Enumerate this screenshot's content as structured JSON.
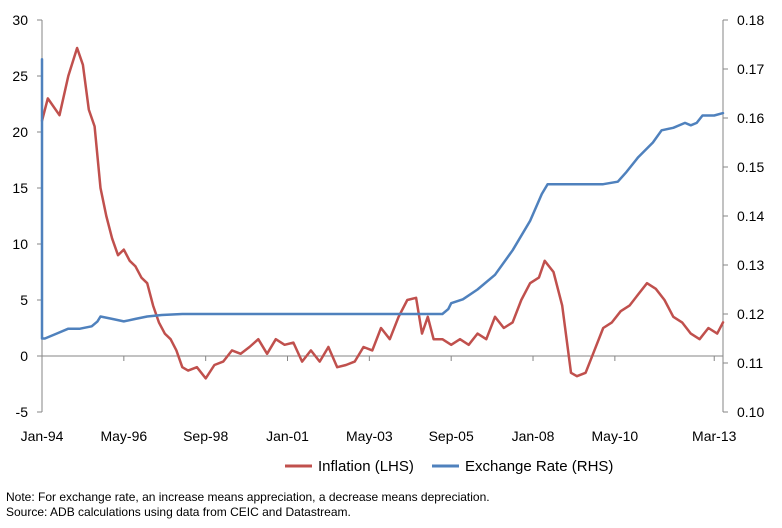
{
  "chart_data": {
    "type": "line",
    "dual_axis": true,
    "x_tick_labels": [
      "Jan-94",
      "May-96",
      "Sep-98",
      "Jan-01",
      "May-03",
      "Sep-05",
      "Jan-08",
      "May-10",
      "Mar-13"
    ],
    "x_tick_dates": [
      "1994-01",
      "1996-05",
      "1998-09",
      "2001-01",
      "2003-05",
      "2005-09",
      "2008-01",
      "2010-05",
      "2013-03"
    ],
    "xlim": [
      "1994-01",
      "2013-06"
    ],
    "y_left": {
      "ylim": [
        -5,
        30
      ],
      "ticks": [
        "-5",
        "0",
        "5",
        "10",
        "15",
        "20",
        "25",
        "30"
      ]
    },
    "y_right": {
      "ylim": [
        0.1,
        0.18
      ],
      "ticks": [
        "0.10",
        "0.11",
        "0.12",
        "0.13",
        "0.14",
        "0.15",
        "0.16",
        "0.17",
        "0.18"
      ]
    },
    "grid": false,
    "legend_position": "bottom",
    "series": [
      {
        "name": "Inflation (LHS)",
        "axis": "left",
        "color": "#c0504d",
        "x": [
          "1994-01",
          "1994-03",
          "1994-07",
          "1994-10",
          "1995-01",
          "1995-03",
          "1995-05",
          "1995-07",
          "1995-09",
          "1995-11",
          "1996-01",
          "1996-03",
          "1996-05",
          "1996-07",
          "1996-09",
          "1996-11",
          "1997-01",
          "1997-03",
          "1997-05",
          "1997-07",
          "1997-09",
          "1997-11",
          "1998-01",
          "1998-03",
          "1998-06",
          "1998-09",
          "1998-12",
          "1999-03",
          "1999-06",
          "1999-09",
          "1999-12",
          "2000-03",
          "2000-06",
          "2000-09",
          "2000-12",
          "2001-03",
          "2001-06",
          "2001-09",
          "2001-12",
          "2002-03",
          "2002-06",
          "2002-09",
          "2002-12",
          "2003-03",
          "2003-06",
          "2003-09",
          "2003-12",
          "2004-03",
          "2004-06",
          "2004-09",
          "2004-11",
          "2005-01",
          "2005-03",
          "2005-06",
          "2005-09",
          "2005-12",
          "2006-03",
          "2006-06",
          "2006-09",
          "2006-12",
          "2007-03",
          "2007-06",
          "2007-09",
          "2007-12",
          "2008-03",
          "2008-05",
          "2008-08",
          "2008-11",
          "2009-02",
          "2009-04",
          "2009-07",
          "2009-10",
          "2010-01",
          "2010-04",
          "2010-07",
          "2010-10",
          "2011-01",
          "2011-04",
          "2011-07",
          "2011-10",
          "2012-01",
          "2012-04",
          "2012-07",
          "2012-10",
          "2013-01",
          "2013-04",
          "2013-06"
        ],
        "values": [
          21.0,
          23.0,
          21.5,
          25.0,
          27.5,
          26.0,
          22.0,
          20.5,
          15.0,
          12.5,
          10.5,
          9.0,
          9.5,
          8.5,
          8.0,
          7.0,
          6.5,
          4.5,
          3.0,
          2.0,
          1.5,
          0.5,
          -1.0,
          -1.3,
          -1.0,
          -2.0,
          -0.8,
          -0.5,
          0.5,
          0.2,
          0.8,
          1.5,
          0.2,
          1.5,
          1.0,
          1.2,
          -0.5,
          0.5,
          -0.5,
          0.8,
          -1.0,
          -0.8,
          -0.5,
          0.8,
          0.5,
          2.5,
          1.5,
          3.5,
          5.0,
          5.2,
          2.0,
          3.5,
          1.5,
          1.5,
          1.0,
          1.5,
          1.0,
          2.0,
          1.5,
          3.5,
          2.5,
          3.0,
          5.0,
          6.5,
          7.0,
          8.5,
          7.5,
          4.5,
          -1.5,
          -1.8,
          -1.5,
          0.5,
          2.5,
          3.0,
          4.0,
          4.5,
          5.5,
          6.5,
          6.0,
          5.0,
          3.5,
          3.0,
          2.0,
          1.5,
          2.5,
          2.0,
          3.0
        ]
      },
      {
        "name": "Exchange Rate (RHS)",
        "axis": "right",
        "color": "#4f81bd",
        "x": [
          "1994-01",
          "1994-01",
          "1994-02",
          "1994-06",
          "1994-10",
          "1995-02",
          "1995-06",
          "1995-08",
          "1995-09",
          "1996-01",
          "1996-05",
          "1996-09",
          "1997-01",
          "1997-06",
          "1998-01",
          "1998-09",
          "1999-06",
          "2000-06",
          "2001-06",
          "2002-06",
          "2003-06",
          "2004-06",
          "2005-06",
          "2005-08",
          "2005-09",
          "2006-01",
          "2006-06",
          "2006-12",
          "2007-06",
          "2007-12",
          "2008-04",
          "2008-06",
          "2008-08",
          "2009-06",
          "2010-01",
          "2010-06",
          "2010-09",
          "2011-01",
          "2011-06",
          "2011-09",
          "2012-01",
          "2012-05",
          "2012-07",
          "2012-09",
          "2012-11",
          "2013-03",
          "2013-06"
        ],
        "values": [
          0.172,
          0.115,
          0.115,
          0.116,
          0.117,
          0.117,
          0.1175,
          0.1185,
          0.1195,
          0.119,
          0.1185,
          0.119,
          0.1195,
          0.1198,
          0.12,
          0.12,
          0.12,
          0.12,
          0.12,
          0.12,
          0.12,
          0.12,
          0.12,
          0.121,
          0.1222,
          0.123,
          0.125,
          0.128,
          0.133,
          0.139,
          0.1445,
          0.1465,
          0.1465,
          0.1465,
          0.1465,
          0.147,
          0.149,
          0.152,
          0.155,
          0.1575,
          0.158,
          0.159,
          0.1585,
          0.159,
          0.1605,
          0.1605,
          0.161
        ]
      }
    ]
  },
  "notes": {
    "line1": "Note: For exchange rate, an increase means appreciation, a decrease means depreciation.",
    "line2": "Source: ADB calculations using data from CEIC and Datastream."
  }
}
